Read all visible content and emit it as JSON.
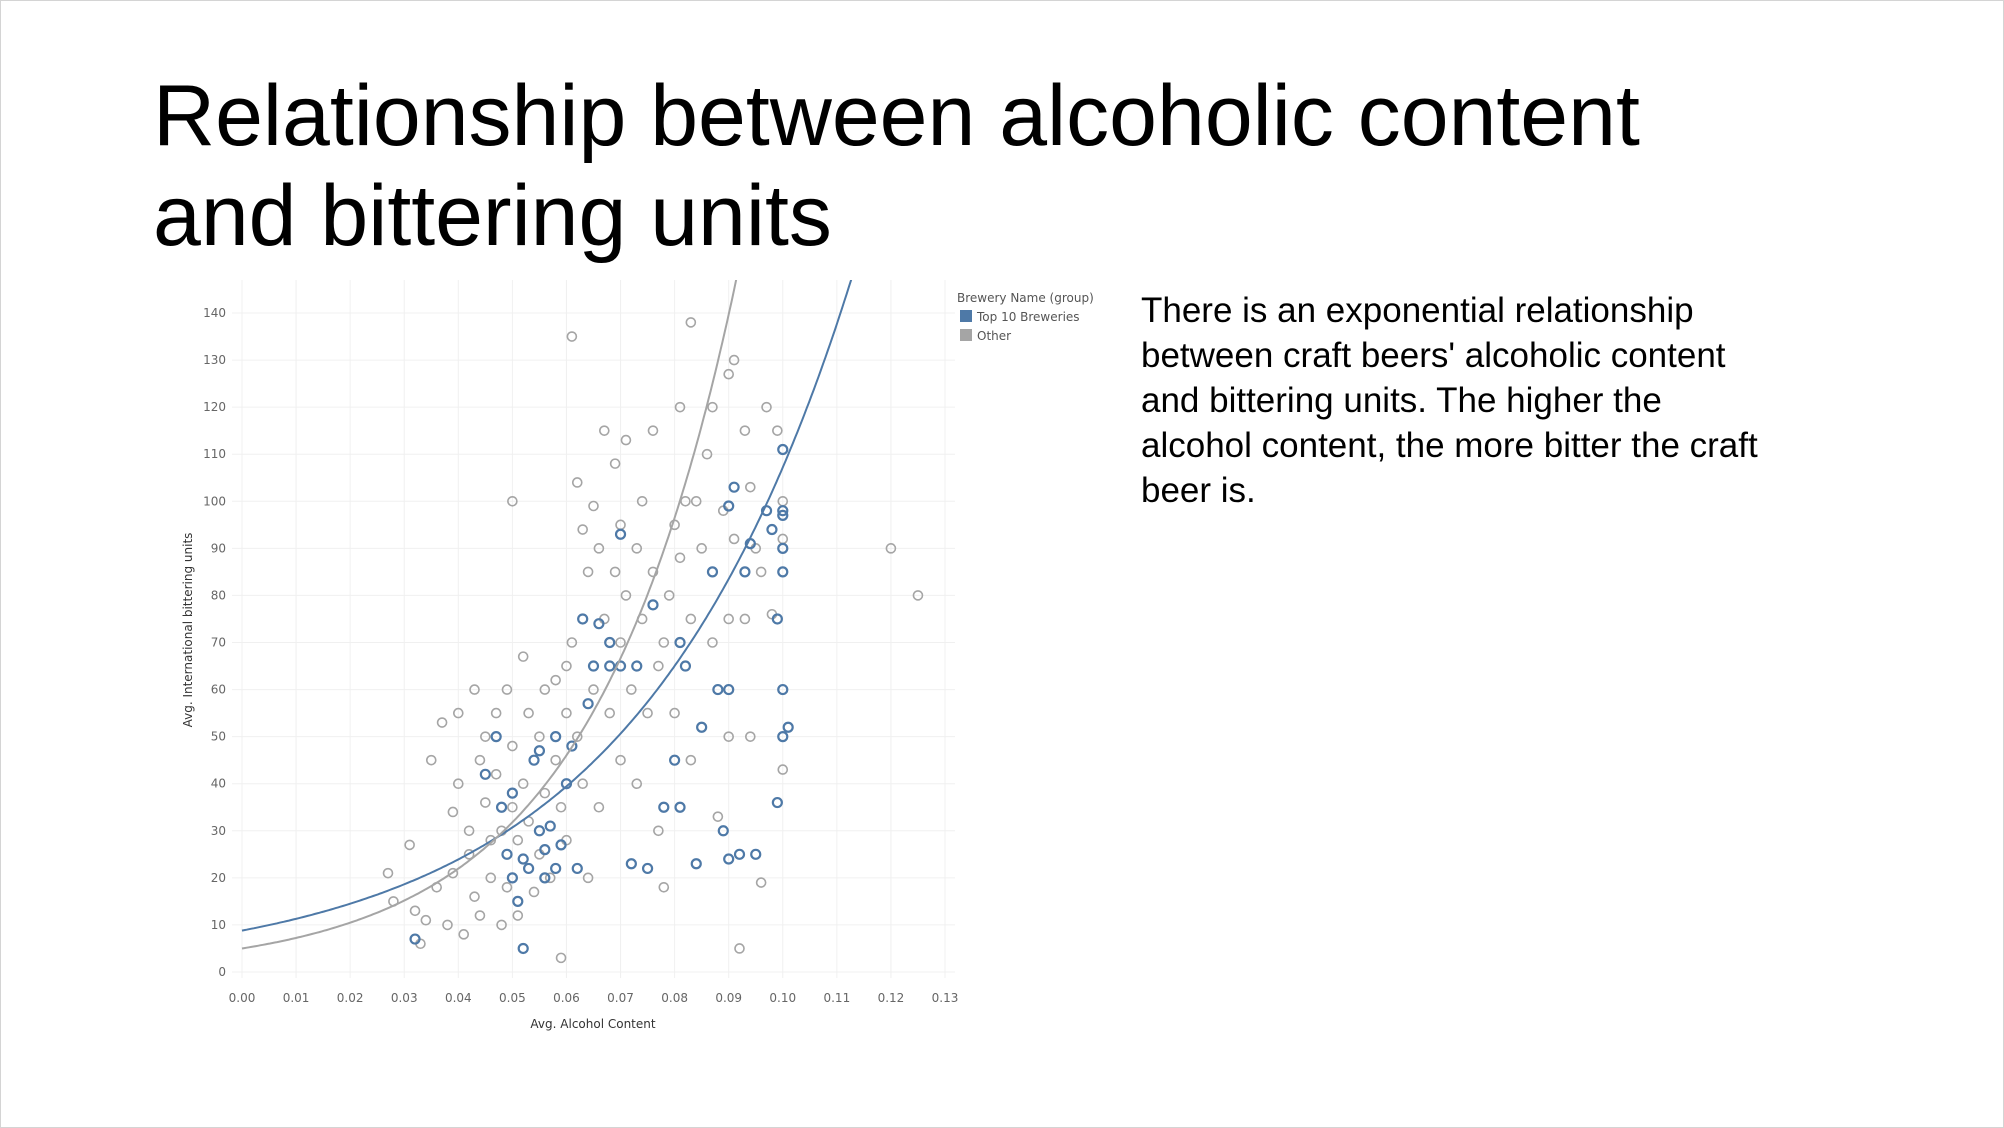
{
  "slide": {
    "title": "Relationship between alcoholic content and bittering units",
    "body": "There is an exponential relationship between craft beers' alcoholic content and bittering units. The higher the alcohol content, the more bitter the craft beer is."
  },
  "chart_data": {
    "type": "scatter",
    "xlabel": "Avg. Alcohol Content",
    "ylabel": "Avg. International bittering units",
    "xlim": [
      0,
      0.13
    ],
    "ylim": [
      0,
      140
    ],
    "x_ticks": [
      "0.00",
      "0.01",
      "0.02",
      "0.03",
      "0.04",
      "0.05",
      "0.06",
      "0.07",
      "0.08",
      "0.09",
      "0.10",
      "0.11",
      "0.12",
      "0.13"
    ],
    "y_ticks": [
      "0",
      "10",
      "20",
      "30",
      "40",
      "50",
      "60",
      "70",
      "80",
      "90",
      "100",
      "110",
      "120",
      "130",
      "140"
    ],
    "grid": true,
    "legend": {
      "title": "Brewery Name (group)",
      "placement": "right",
      "entries": [
        {
          "label": "Top 10 Breweries",
          "color": "#4e79a7"
        },
        {
          "label": "Other",
          "color": "#a5a5a5"
        }
      ]
    },
    "series": [
      {
        "name": "Top 10 Breweries",
        "color": "#4e79a7",
        "trend": {
          "type": "exponential",
          "a": 8.8,
          "b": 25.0
        },
        "points": [
          [
            0.032,
            7
          ],
          [
            0.045,
            42
          ],
          [
            0.047,
            50
          ],
          [
            0.048,
            35
          ],
          [
            0.049,
            25
          ],
          [
            0.05,
            38
          ],
          [
            0.05,
            20
          ],
          [
            0.051,
            15
          ],
          [
            0.052,
            5
          ],
          [
            0.052,
            24
          ],
          [
            0.053,
            22
          ],
          [
            0.054,
            45
          ],
          [
            0.055,
            47
          ],
          [
            0.055,
            30
          ],
          [
            0.056,
            20
          ],
          [
            0.056,
            26
          ],
          [
            0.057,
            31
          ],
          [
            0.058,
            50
          ],
          [
            0.058,
            22
          ],
          [
            0.059,
            27
          ],
          [
            0.06,
            40
          ],
          [
            0.061,
            48
          ],
          [
            0.062,
            22
          ],
          [
            0.063,
            75
          ],
          [
            0.064,
            57
          ],
          [
            0.065,
            65
          ],
          [
            0.066,
            74
          ],
          [
            0.068,
            70
          ],
          [
            0.068,
            65
          ],
          [
            0.07,
            93
          ],
          [
            0.07,
            65
          ],
          [
            0.072,
            23
          ],
          [
            0.073,
            65
          ],
          [
            0.075,
            22
          ],
          [
            0.076,
            78
          ],
          [
            0.078,
            35
          ],
          [
            0.08,
            45
          ],
          [
            0.081,
            70
          ],
          [
            0.081,
            35
          ],
          [
            0.082,
            65
          ],
          [
            0.084,
            23
          ],
          [
            0.085,
            52
          ],
          [
            0.087,
            85
          ],
          [
            0.088,
            60
          ],
          [
            0.089,
            30
          ],
          [
            0.09,
            99
          ],
          [
            0.09,
            60
          ],
          [
            0.09,
            24
          ],
          [
            0.091,
            103
          ],
          [
            0.092,
            25
          ],
          [
            0.093,
            85
          ],
          [
            0.094,
            91
          ],
          [
            0.095,
            25
          ],
          [
            0.097,
            98
          ],
          [
            0.098,
            94
          ],
          [
            0.099,
            75
          ],
          [
            0.099,
            36
          ],
          [
            0.1,
            111
          ],
          [
            0.1,
            98
          ],
          [
            0.1,
            97
          ],
          [
            0.1,
            90
          ],
          [
            0.1,
            85
          ],
          [
            0.1,
            60
          ],
          [
            0.1,
            50
          ],
          [
            0.101,
            52
          ]
        ]
      },
      {
        "name": "Other",
        "color": "#a5a5a5",
        "trend": {
          "type": "exponential",
          "a": 5.0,
          "b": 37.0
        },
        "points": [
          [
            0.027,
            21
          ],
          [
            0.028,
            15
          ],
          [
            0.031,
            27
          ],
          [
            0.032,
            13
          ],
          [
            0.033,
            6
          ],
          [
            0.034,
            11
          ],
          [
            0.035,
            45
          ],
          [
            0.036,
            18
          ],
          [
            0.037,
            53
          ],
          [
            0.038,
            10
          ],
          [
            0.039,
            21
          ],
          [
            0.039,
            34
          ],
          [
            0.04,
            55
          ],
          [
            0.04,
            40
          ],
          [
            0.041,
            8
          ],
          [
            0.042,
            30
          ],
          [
            0.042,
            25
          ],
          [
            0.043,
            60
          ],
          [
            0.043,
            16
          ],
          [
            0.044,
            45
          ],
          [
            0.044,
            12
          ],
          [
            0.045,
            50
          ],
          [
            0.045,
            36
          ],
          [
            0.046,
            20
          ],
          [
            0.046,
            28
          ],
          [
            0.047,
            55
          ],
          [
            0.047,
            42
          ],
          [
            0.048,
            10
          ],
          [
            0.048,
            30
          ],
          [
            0.049,
            60
          ],
          [
            0.049,
            18
          ],
          [
            0.05,
            100
          ],
          [
            0.05,
            48
          ],
          [
            0.05,
            35
          ],
          [
            0.051,
            28
          ],
          [
            0.051,
            12
          ],
          [
            0.052,
            67
          ],
          [
            0.052,
            40
          ],
          [
            0.053,
            55
          ],
          [
            0.053,
            32
          ],
          [
            0.054,
            17
          ],
          [
            0.055,
            50
          ],
          [
            0.055,
            25
          ],
          [
            0.056,
            60
          ],
          [
            0.056,
            38
          ],
          [
            0.057,
            20
          ],
          [
            0.058,
            62
          ],
          [
            0.058,
            45
          ],
          [
            0.059,
            35
          ],
          [
            0.059,
            3
          ],
          [
            0.06,
            65
          ],
          [
            0.06,
            55
          ],
          [
            0.06,
            28
          ],
          [
            0.061,
            135
          ],
          [
            0.061,
            70
          ],
          [
            0.062,
            104
          ],
          [
            0.062,
            50
          ],
          [
            0.063,
            94
          ],
          [
            0.063,
            40
          ],
          [
            0.064,
            85
          ],
          [
            0.064,
            20
          ],
          [
            0.065,
            99
          ],
          [
            0.065,
            60
          ],
          [
            0.066,
            90
          ],
          [
            0.066,
            35
          ],
          [
            0.067,
            115
          ],
          [
            0.067,
            75
          ],
          [
            0.068,
            55
          ],
          [
            0.069,
            108
          ],
          [
            0.069,
            85
          ],
          [
            0.07,
            95
          ],
          [
            0.07,
            70
          ],
          [
            0.07,
            45
          ],
          [
            0.071,
            113
          ],
          [
            0.071,
            80
          ],
          [
            0.072,
            60
          ],
          [
            0.073,
            90
          ],
          [
            0.073,
            40
          ],
          [
            0.074,
            100
          ],
          [
            0.074,
            75
          ],
          [
            0.075,
            55
          ],
          [
            0.076,
            115
          ],
          [
            0.076,
            85
          ],
          [
            0.077,
            65
          ],
          [
            0.077,
            30
          ],
          [
            0.078,
            70
          ],
          [
            0.078,
            18
          ],
          [
            0.079,
            80
          ],
          [
            0.08,
            95
          ],
          [
            0.08,
            55
          ],
          [
            0.081,
            120
          ],
          [
            0.081,
            88
          ],
          [
            0.082,
            100
          ],
          [
            0.083,
            138
          ],
          [
            0.083,
            75
          ],
          [
            0.083,
            45
          ],
          [
            0.084,
            100
          ],
          [
            0.085,
            90
          ],
          [
            0.086,
            110
          ],
          [
            0.087,
            120
          ],
          [
            0.087,
            70
          ],
          [
            0.088,
            33
          ],
          [
            0.089,
            98
          ],
          [
            0.09,
            127
          ],
          [
            0.09,
            75
          ],
          [
            0.09,
            50
          ],
          [
            0.091,
            130
          ],
          [
            0.091,
            92
          ],
          [
            0.092,
            5
          ],
          [
            0.093,
            115
          ],
          [
            0.093,
            75
          ],
          [
            0.094,
            103
          ],
          [
            0.094,
            50
          ],
          [
            0.095,
            90
          ],
          [
            0.096,
            85
          ],
          [
            0.096,
            19
          ],
          [
            0.097,
            120
          ],
          [
            0.098,
            76
          ],
          [
            0.099,
            115
          ],
          [
            0.1,
            100
          ],
          [
            0.1,
            92
          ],
          [
            0.1,
            43
          ],
          [
            0.12,
            90
          ],
          [
            0.125,
            80
          ]
        ]
      }
    ]
  }
}
